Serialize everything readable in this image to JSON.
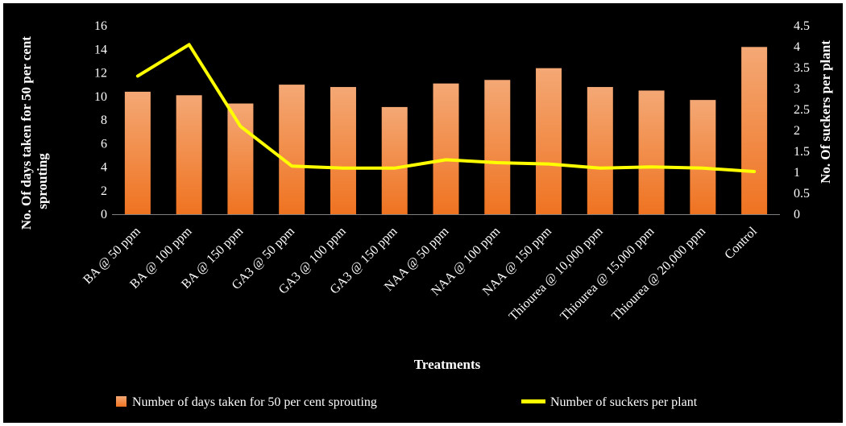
{
  "chart_data": {
    "type": "bar",
    "categories": [
      "BA @ 50 ppm",
      "BA @ 100 ppm",
      "BA @ 150 ppm",
      "GA3 @ 50 ppm",
      "GA3 @ 100 ppm",
      "GA3 @ 150 ppm",
      "NAA @ 50  ppm",
      "NAA @ 100  ppm",
      "NAA @ 150 ppm",
      "Thiourea @ 10,000 ppm",
      "Thiourea  @ 15,000 ppm",
      "Thiourea  @ 20,000 ppm",
      "Control"
    ],
    "series": [
      {
        "name": "Number of days taken for 50 per cent sprouting",
        "type": "bar",
        "axis": "left",
        "values": [
          10.4,
          10.1,
          9.4,
          11.0,
          10.8,
          9.1,
          11.1,
          11.4,
          12.4,
          10.8,
          10.5,
          9.7,
          14.2
        ]
      },
      {
        "name": "Number of suckers per plant",
        "type": "line",
        "axis": "right",
        "values": [
          3.3,
          4.05,
          2.1,
          1.15,
          1.1,
          1.1,
          1.3,
          1.23,
          1.2,
          1.1,
          1.13,
          1.1,
          1.02
        ]
      }
    ],
    "xlabel": "Treatments",
    "ylabel": "No. Of days taken for 50 per cent sprouting",
    "y2label": "No. Of suckers per plant",
    "ylim": [
      0,
      16
    ],
    "yticks": [
      "0",
      "2",
      "4",
      "6",
      "8",
      "10",
      "12",
      "14",
      "16"
    ],
    "y2lim": [
      0,
      4.5
    ],
    "y2ticks": [
      "0",
      "0.5",
      "1",
      "1.5",
      "2",
      "2.5",
      "3",
      "3.5",
      "4",
      "4.5"
    ],
    "grid": false,
    "legend_position": "bottom",
    "colors": {
      "background": "#000000",
      "bar_top": "#f4a875",
      "bar_bottom": "#ef7321",
      "line": "#ffff00",
      "text": "#ffffff",
      "axis": "#7f7f7f"
    }
  }
}
